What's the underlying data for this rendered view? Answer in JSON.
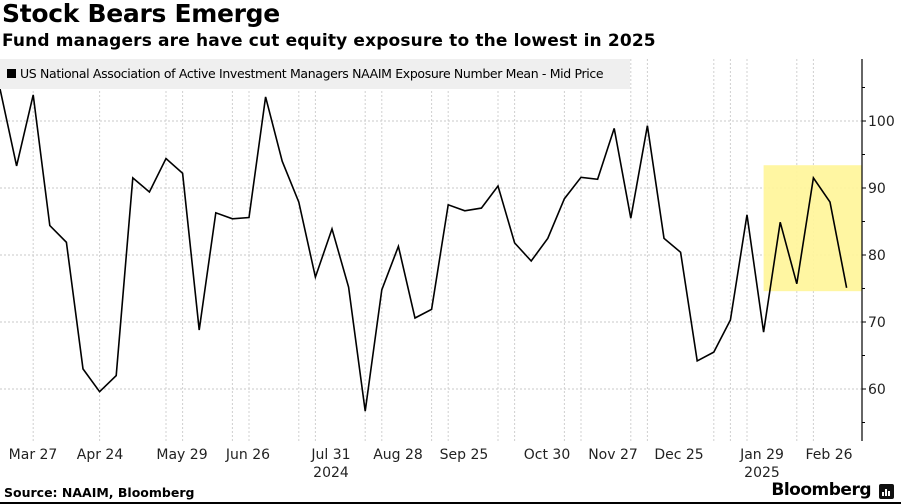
{
  "header": {
    "title": "Stock Bears Emerge",
    "subtitle": "Fund managers are have cut equity exposure to the lowest in  2025"
  },
  "footer": {
    "source": "Source: NAAIM, Bloomberg",
    "brand": "Bloomberg",
    "brand_icon": "bloomberg-terminal-icon"
  },
  "chart_data": {
    "type": "line",
    "title": "Stock Bears Emerge",
    "subtitle": "Fund managers are have cut equity exposure to the lowest in  2025",
    "xlabel": "",
    "ylabel": "",
    "legend": {
      "placement": "top-left",
      "entries": [
        "US National Association of Active Investment Managers NAAIM Exposure Number Mean - Mid Price"
      ]
    },
    "x_tick_labels": [
      "Mar 27",
      "Apr 24",
      "May 29",
      "Jun 26",
      "Jul 31",
      "Aug 28",
      "Sep 25",
      "Oct 30",
      "Nov 27",
      "Dec 25",
      "Jan 29",
      "Feb 26"
    ],
    "x_year_labels": [
      {
        "label": "2024",
        "under": "Jul 31"
      },
      {
        "label": "2025",
        "under": "Jan 29"
      }
    ],
    "y_axis_side": "right",
    "y_ticks": [
      60,
      70,
      80,
      90,
      100
    ],
    "ylim": [
      52,
      109
    ],
    "grid": true,
    "highlight": {
      "description": "yellow box around the 2025 decline",
      "x_range_weeks": [
        46,
        51
      ],
      "y_range": [
        74.6,
        93.4
      ],
      "color": "#fff59a"
    },
    "series": [
      {
        "name": "US National Association of Active Investment Managers NAAIM Exposure Number Mean - Mid Price",
        "color": "#000000",
        "values": [
          104.8,
          93.3,
          103.9,
          84.4,
          81.9,
          63.0,
          59.6,
          62.0,
          91.5,
          89.4,
          94.4,
          92.2,
          68.8,
          86.3,
          85.4,
          85.6,
          103.6,
          94.0,
          87.9,
          76.7,
          83.9,
          75.2,
          56.7,
          74.8,
          81.3,
          70.6,
          71.9,
          87.5,
          86.6,
          87.0,
          90.3,
          81.8,
          79.1,
          82.5,
          88.4,
          91.6,
          91.3,
          98.9,
          85.5,
          99.3,
          82.5,
          80.4,
          64.2,
          65.5,
          70.3,
          86.0,
          68.5,
          84.9,
          75.7,
          91.5,
          87.9,
          75.1
        ]
      }
    ]
  }
}
